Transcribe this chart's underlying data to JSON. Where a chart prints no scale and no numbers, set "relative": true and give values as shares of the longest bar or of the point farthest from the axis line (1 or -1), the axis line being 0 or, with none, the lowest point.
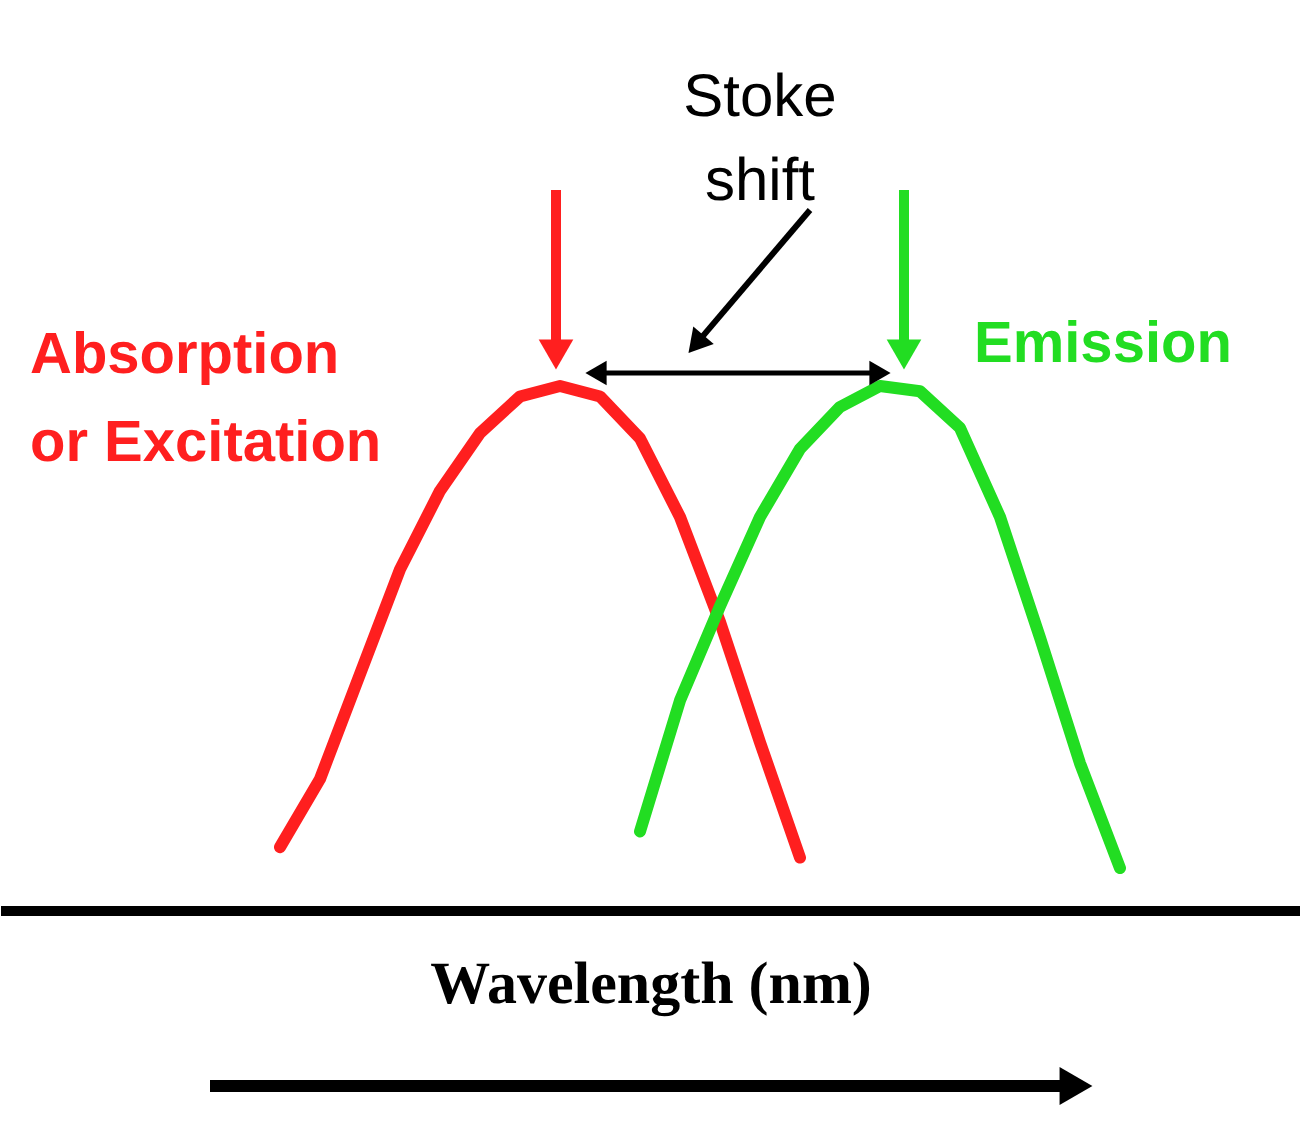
{
  "chart_data": {
    "type": "line",
    "relative": true,
    "xlabel": "Wavelength (nm)",
    "tick_labels": false,
    "grid": false,
    "categories": [
      null,
      null,
      null,
      null,
      null,
      null,
      null,
      null,
      null,
      null,
      null,
      null,
      null,
      null,
      null,
      null,
      null,
      null,
      null,
      null,
      null,
      null,
      null
    ],
    "series": [
      {
        "name": "Absorption or Excitation",
        "color": "#ff1f1f",
        "values": [
          0.12,
          0.25,
          0.45,
          0.65,
          0.8,
          0.91,
          0.98,
          1.0,
          0.98,
          0.9,
          0.75,
          0.55,
          0.32,
          0.1,
          null,
          null,
          null,
          null,
          null,
          null,
          null,
          null,
          null
        ]
      },
      {
        "name": "Emission",
        "color": "#22dd22",
        "values": [
          null,
          null,
          null,
          null,
          null,
          null,
          null,
          null,
          null,
          0.15,
          0.4,
          0.58,
          0.75,
          0.88,
          0.96,
          1.0,
          0.99,
          0.92,
          0.75,
          0.52,
          0.28,
          0.08,
          null
        ]
      }
    ],
    "annotations": [
      "Stoke shift"
    ]
  }
}
